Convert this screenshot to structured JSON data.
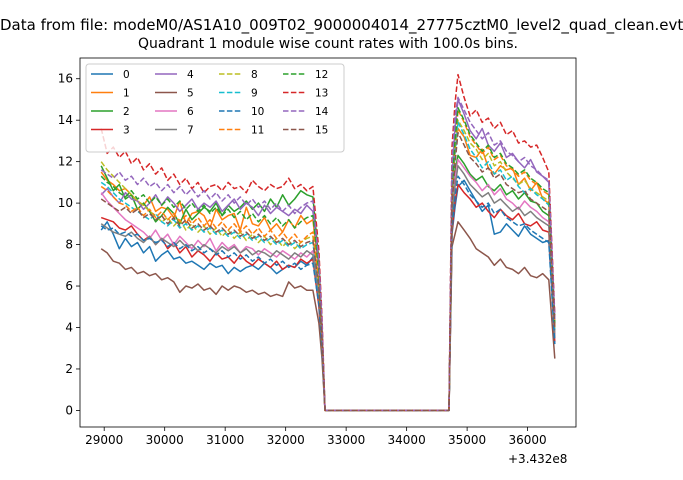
{
  "chart_data": {
    "type": "line",
    "suptitle": "Data from file: modeM0/AS1A10_009T02_9000004014_27775cztM0_level2_quad_clean.evt",
    "title": "Quadrant 1 module wise count rates with 100.0s bins.",
    "xlabel": "",
    "ylabel": "",
    "x_offset_label": "+3.432e8",
    "xlim": [
      28600,
      36800
    ],
    "ylim": [
      -0.8,
      17.0
    ],
    "xticks": [
      29000,
      30000,
      31000,
      32000,
      33000,
      34000,
      35000,
      36000
    ],
    "yticks": [
      0,
      2,
      4,
      6,
      8,
      10,
      12,
      14,
      16
    ],
    "legend_location": "upper-left",
    "legend_columns": 4,
    "x": [
      28950,
      29050,
      29150,
      29250,
      29350,
      29450,
      29550,
      29650,
      29750,
      29850,
      29950,
      30050,
      30150,
      30250,
      30350,
      30450,
      30550,
      30650,
      30750,
      30850,
      30950,
      31050,
      31150,
      31250,
      31350,
      31450,
      31550,
      31650,
      31750,
      31850,
      31950,
      32050,
      32150,
      32250,
      32350,
      32450,
      32550,
      32600,
      32650,
      34700,
      34750,
      34800,
      34850,
      34950,
      35050,
      35150,
      35250,
      35350,
      35450,
      35550,
      35650,
      35750,
      35850,
      35950,
      36050,
      36150,
      36250,
      36350,
      36450
    ],
    "series": [
      {
        "name": "0",
        "color": "#1f77b4",
        "dash": "solid",
        "values": [
          8.7,
          9.1,
          8.5,
          7.8,
          8.3,
          7.9,
          8.1,
          7.6,
          7.9,
          7.2,
          7.5,
          7.7,
          7.3,
          7.4,
          7.1,
          7.2,
          7.0,
          6.8,
          7.1,
          6.9,
          7.0,
          6.6,
          6.9,
          6.7,
          6.9,
          7.0,
          6.8,
          7.1,
          6.9,
          6.6,
          6.8,
          7.0,
          6.9,
          7.2,
          7.0,
          7.4,
          5.1,
          3.0,
          0.0,
          0.0,
          8.5,
          9.8,
          10.8,
          11.1,
          10.6,
          10.1,
          9.6,
          9.9,
          8.5,
          8.6,
          9.0,
          8.7,
          8.4,
          8.9,
          8.5,
          8.3,
          8.1,
          8.2,
          3.5
        ]
      },
      {
        "name": "1",
        "color": "#ff7f0e",
        "dash": "solid",
        "values": [
          11.5,
          11.1,
          10.9,
          10.6,
          10.7,
          10.4,
          10.1,
          9.9,
          10.3,
          9.6,
          9.8,
          9.7,
          9.3,
          10.1,
          9.0,
          9.5,
          9.6,
          9.4,
          8.8,
          9.7,
          9.2,
          9.4,
          9.5,
          8.7,
          9.8,
          9.0,
          8.9,
          9.3,
          8.7,
          9.0,
          8.6,
          9.2,
          8.8,
          9.4,
          9.0,
          9.2,
          6.6,
          3.8,
          0.0,
          0.0,
          10.5,
          12.6,
          13.6,
          13.2,
          12.3,
          12.2,
          12.6,
          11.7,
          11.4,
          11.8,
          11.6,
          11.7,
          10.9,
          11.2,
          10.6,
          11.0,
          10.2,
          10.0,
          4.0
        ]
      },
      {
        "name": "2",
        "color": "#2ca02c",
        "dash": "solid",
        "values": [
          11.8,
          11.2,
          10.6,
          10.9,
          10.2,
          10.4,
          9.7,
          10.0,
          9.6,
          9.1,
          9.4,
          9.8,
          9.5,
          9.0,
          9.7,
          9.2,
          9.5,
          9.8,
          9.6,
          10.0,
          9.4,
          9.9,
          9.6,
          9.8,
          10.1,
          9.7,
          10.0,
          9.6,
          10.2,
          9.8,
          10.4,
          9.9,
          10.2,
          10.6,
          10.4,
          10.3,
          7.2,
          4.1,
          0.0,
          0.0,
          9.8,
          11.5,
          12.3,
          11.9,
          11.4,
          11.1,
          11.3,
          10.8,
          10.6,
          10.9,
          10.4,
          10.6,
          10.2,
          10.5,
          10.1,
          10.0,
          9.6,
          9.4,
          3.7
        ]
      },
      {
        "name": "3",
        "color": "#d62728",
        "dash": "solid",
        "values": [
          9.3,
          9.2,
          9.1,
          8.8,
          8.7,
          8.9,
          8.5,
          8.2,
          8.4,
          8.0,
          8.3,
          7.8,
          8.1,
          7.6,
          7.9,
          7.4,
          7.7,
          7.5,
          7.2,
          7.6,
          7.3,
          7.4,
          7.1,
          7.5,
          7.2,
          7.0,
          7.3,
          7.1,
          6.9,
          7.2,
          6.8,
          7.0,
          6.9,
          7.3,
          7.1,
          7.3,
          5.0,
          2.9,
          0.0,
          0.0,
          8.6,
          10.1,
          10.9,
          10.5,
          10.2,
          9.8,
          10.0,
          9.6,
          9.3,
          9.7,
          9.4,
          9.2,
          9.5,
          9.0,
          8.9,
          9.1,
          8.7,
          8.6,
          3.3
        ]
      },
      {
        "name": "4",
        "color": "#9467bd",
        "dash": "solid",
        "values": [
          10.4,
          10.7,
          10.3,
          10.0,
          10.5,
          10.2,
          10.1,
          9.7,
          10.0,
          10.4,
          9.9,
          10.3,
          10.0,
          9.6,
          9.9,
          10.2,
          9.7,
          10.0,
          9.8,
          10.1,
          9.6,
          9.9,
          10.2,
          9.7,
          10.0,
          9.8,
          9.4,
          9.9,
          9.5,
          9.8,
          9.6,
          9.4,
          9.7,
          9.5,
          9.9,
          9.6,
          6.9,
          4.0,
          0.0,
          0.0,
          11.2,
          13.6,
          15.0,
          14.3,
          13.5,
          13.1,
          13.6,
          12.8,
          12.5,
          12.9,
          12.2,
          12.4,
          12.0,
          11.7,
          12.1,
          11.5,
          11.3,
          11.0,
          4.4
        ]
      },
      {
        "name": "5",
        "color": "#8c564b",
        "dash": "solid",
        "values": [
          7.8,
          7.6,
          7.2,
          7.1,
          6.8,
          6.9,
          6.6,
          6.7,
          6.5,
          6.6,
          6.3,
          6.4,
          6.2,
          5.7,
          6.0,
          5.9,
          6.1,
          5.8,
          5.9,
          5.6,
          6.0,
          5.8,
          6.0,
          5.9,
          5.7,
          5.8,
          5.6,
          5.7,
          5.5,
          5.6,
          5.5,
          6.2,
          5.9,
          6.0,
          5.8,
          5.8,
          4.2,
          2.5,
          0.0,
          0.0,
          7.9,
          8.5,
          9.1,
          8.7,
          8.3,
          7.8,
          7.6,
          7.4,
          7.0,
          7.3,
          6.9,
          6.8,
          6.6,
          6.9,
          6.5,
          6.4,
          6.6,
          6.3,
          2.5
        ]
      },
      {
        "name": "6",
        "color": "#e377c2",
        "dash": "solid",
        "values": [
          10.5,
          10.1,
          9.8,
          9.5,
          9.2,
          9.0,
          8.8,
          8.6,
          8.3,
          8.7,
          8.2,
          8.5,
          8.0,
          8.4,
          8.1,
          7.8,
          8.2,
          7.9,
          8.3,
          7.7,
          8.1,
          7.8,
          8.0,
          7.6,
          7.9,
          7.8,
          7.5,
          7.8,
          7.6,
          7.4,
          7.7,
          7.5,
          7.3,
          7.6,
          7.4,
          7.7,
          5.5,
          3.2,
          0.0,
          0.0,
          9.4,
          11.2,
          12.1,
          11.7,
          11.3,
          11.0,
          10.6,
          10.9,
          10.4,
          10.7,
          10.2,
          10.0,
          9.7,
          10.1,
          9.8,
          9.6,
          9.3,
          9.1,
          3.6
        ]
      },
      {
        "name": "7",
        "color": "#7f7f7f",
        "dash": "solid",
        "values": [
          9.0,
          8.8,
          8.6,
          8.5,
          8.4,
          8.6,
          8.3,
          8.1,
          8.4,
          8.0,
          8.3,
          8.1,
          7.9,
          8.2,
          7.9,
          8.0,
          7.7,
          8.0,
          7.8,
          7.6,
          7.9,
          7.7,
          7.9,
          7.6,
          7.8,
          7.5,
          7.7,
          7.6,
          7.4,
          7.7,
          7.5,
          7.3,
          7.6,
          7.4,
          7.7,
          7.5,
          5.4,
          3.1,
          0.0,
          0.0,
          9.2,
          10.8,
          11.8,
          11.4,
          10.9,
          10.6,
          10.3,
          10.5,
          10.0,
          10.2,
          9.9,
          9.6,
          9.8,
          9.4,
          9.6,
          9.3,
          9.1,
          8.9,
          3.5
        ]
      },
      {
        "name": "8",
        "color": "#bcbd22",
        "dash": "dashed",
        "values": [
          12.0,
          11.6,
          11.3,
          11.0,
          10.7,
          10.4,
          10.1,
          9.9,
          9.6,
          9.4,
          9.1,
          9.3,
          8.9,
          9.2,
          8.7,
          9.0,
          8.6,
          8.9,
          8.5,
          8.8,
          8.4,
          8.7,
          8.3,
          8.6,
          8.2,
          8.5,
          8.1,
          8.4,
          8.0,
          8.3,
          7.9,
          8.2,
          7.8,
          8.1,
          8.3,
          8.4,
          6.0,
          3.5,
          0.0,
          0.0,
          10.0,
          12.5,
          14.0,
          13.5,
          12.9,
          12.6,
          12.1,
          12.4,
          11.8,
          12.0,
          11.5,
          11.2,
          10.9,
          11.1,
          10.7,
          10.5,
          10.3,
          10.1,
          4.0
        ]
      },
      {
        "name": "9",
        "color": "#17becf",
        "dash": "dashed",
        "values": [
          11.0,
          10.8,
          10.5,
          10.2,
          10.0,
          9.8,
          9.6,
          9.4,
          9.2,
          9.5,
          9.1,
          8.9,
          9.2,
          8.8,
          9.0,
          8.7,
          8.9,
          8.6,
          8.8,
          8.5,
          8.7,
          8.4,
          8.6,
          8.3,
          8.5,
          8.2,
          8.4,
          8.1,
          8.3,
          8.0,
          8.2,
          7.9,
          8.1,
          7.8,
          8.0,
          8.1,
          5.8,
          3.4,
          0.0,
          0.0,
          10.2,
          12.3,
          13.9,
          13.3,
          12.6,
          12.2,
          11.7,
          12.0,
          11.4,
          11.6,
          11.1,
          11.3,
          10.8,
          10.5,
          10.7,
          10.4,
          10.2,
          9.9,
          3.9
        ]
      },
      {
        "name": "10",
        "color": "#1f77b4",
        "dash": "dashed",
        "values": [
          8.9,
          8.7,
          8.8,
          8.5,
          8.6,
          8.4,
          8.5,
          8.2,
          8.3,
          8.1,
          8.2,
          7.9,
          8.1,
          7.8,
          8.0,
          7.7,
          7.9,
          7.6,
          7.8,
          7.5,
          7.7,
          7.4,
          7.6,
          7.3,
          7.5,
          7.2,
          7.4,
          7.1,
          7.3,
          7.0,
          7.2,
          6.9,
          7.1,
          6.8,
          7.0,
          7.1,
          5.1,
          3.0,
          0.0,
          0.0,
          8.8,
          10.3,
          11.3,
          10.9,
          10.4,
          10.1,
          9.8,
          10.0,
          9.5,
          9.7,
          9.3,
          9.1,
          8.9,
          9.0,
          8.7,
          8.5,
          8.3,
          8.1,
          3.2
        ]
      },
      {
        "name": "11",
        "color": "#ff7f0e",
        "dash": "dashed",
        "values": [
          10.8,
          10.6,
          10.3,
          10.0,
          9.9,
          9.6,
          9.8,
          9.4,
          9.7,
          9.3,
          9.6,
          9.2,
          9.5,
          9.1,
          9.4,
          9.0,
          9.3,
          8.9,
          9.2,
          8.8,
          9.1,
          8.7,
          9.0,
          8.6,
          8.9,
          8.5,
          8.8,
          8.4,
          8.7,
          8.3,
          8.6,
          8.2,
          8.5,
          8.1,
          8.4,
          8.6,
          6.1,
          3.6,
          0.0,
          0.0,
          10.6,
          12.8,
          14.5,
          13.9,
          13.2,
          12.8,
          12.4,
          12.7,
          12.1,
          12.3,
          11.8,
          11.6,
          11.3,
          11.5,
          11.1,
          10.9,
          10.6,
          10.4,
          4.1
        ]
      },
      {
        "name": "12",
        "color": "#2ca02c",
        "dash": "dashed",
        "values": [
          11.3,
          11.0,
          10.8,
          10.5,
          10.3,
          10.6,
          10.2,
          10.4,
          10.0,
          10.3,
          9.9,
          10.2,
          9.8,
          10.1,
          9.7,
          10.0,
          9.6,
          9.9,
          9.5,
          9.8,
          9.4,
          9.7,
          9.3,
          9.6,
          9.2,
          9.5,
          9.1,
          9.4,
          9.0,
          9.3,
          8.9,
          9.2,
          8.8,
          9.1,
          9.3,
          9.4,
          6.7,
          3.9,
          0.0,
          0.0,
          10.8,
          13.0,
          14.6,
          14.0,
          13.3,
          12.9,
          12.5,
          12.8,
          12.2,
          12.4,
          11.9,
          11.7,
          11.4,
          11.6,
          11.2,
          11.0,
          10.7,
          10.5,
          4.2
        ]
      },
      {
        "name": "13",
        "color": "#d62728",
        "dash": "dashed",
        "values": [
          13.6,
          12.4,
          12.7,
          12.2,
          12.5,
          11.9,
          12.2,
          11.6,
          11.9,
          11.4,
          11.7,
          11.1,
          11.4,
          10.9,
          11.2,
          10.7,
          11.0,
          10.5,
          10.8,
          10.9,
          10.6,
          11.0,
          10.7,
          10.8,
          10.5,
          11.1,
          10.8,
          10.6,
          10.9,
          10.7,
          10.8,
          11.2,
          10.7,
          10.9,
          10.6,
          10.8,
          7.7,
          4.5,
          0.0,
          0.0,
          12.7,
          14.8,
          16.2,
          15.1,
          14.2,
          14.5,
          13.9,
          14.1,
          13.6,
          13.9,
          13.3,
          13.5,
          12.9,
          13.0,
          12.7,
          12.8,
          12.2,
          11.5,
          4.6
        ]
      },
      {
        "name": "14",
        "color": "#9467bd",
        "dash": "dashed",
        "values": [
          11.6,
          11.4,
          11.2,
          11.5,
          11.1,
          11.3,
          10.9,
          11.2,
          10.8,
          11.0,
          10.6,
          10.9,
          10.5,
          10.8,
          10.4,
          10.7,
          10.3,
          10.6,
          10.2,
          10.5,
          10.1,
          10.4,
          10.0,
          10.3,
          9.9,
          10.2,
          9.8,
          10.1,
          9.7,
          10.0,
          9.6,
          9.9,
          9.5,
          9.8,
          10.0,
          10.1,
          7.2,
          4.2,
          0.0,
          0.0,
          11.9,
          14.2,
          15.1,
          14.5,
          13.9,
          13.5,
          13.1,
          13.4,
          12.8,
          13.0,
          12.5,
          12.3,
          12.0,
          12.2,
          11.8,
          11.6,
          11.3,
          11.1,
          4.4
        ]
      },
      {
        "name": "15",
        "color": "#8c564b",
        "dash": "dashed",
        "values": [
          10.2,
          10.0,
          9.8,
          9.6,
          9.8,
          9.5,
          9.7,
          9.3,
          9.5,
          9.2,
          9.4,
          9.0,
          9.3,
          8.9,
          9.2,
          8.8,
          9.0,
          8.7,
          8.9,
          8.6,
          8.8,
          8.5,
          8.7,
          8.4,
          8.6,
          8.3,
          8.5,
          8.2,
          8.4,
          8.1,
          8.3,
          8.0,
          8.2,
          7.9,
          8.1,
          8.2,
          5.9,
          3.4,
          0.0,
          0.0,
          9.9,
          11.9,
          13.4,
          12.8,
          12.2,
          11.9,
          11.5,
          11.7,
          11.2,
          11.4,
          10.9,
          10.7,
          10.5,
          10.6,
          10.2,
          10.0,
          9.8,
          9.6,
          3.9
        ]
      }
    ]
  }
}
